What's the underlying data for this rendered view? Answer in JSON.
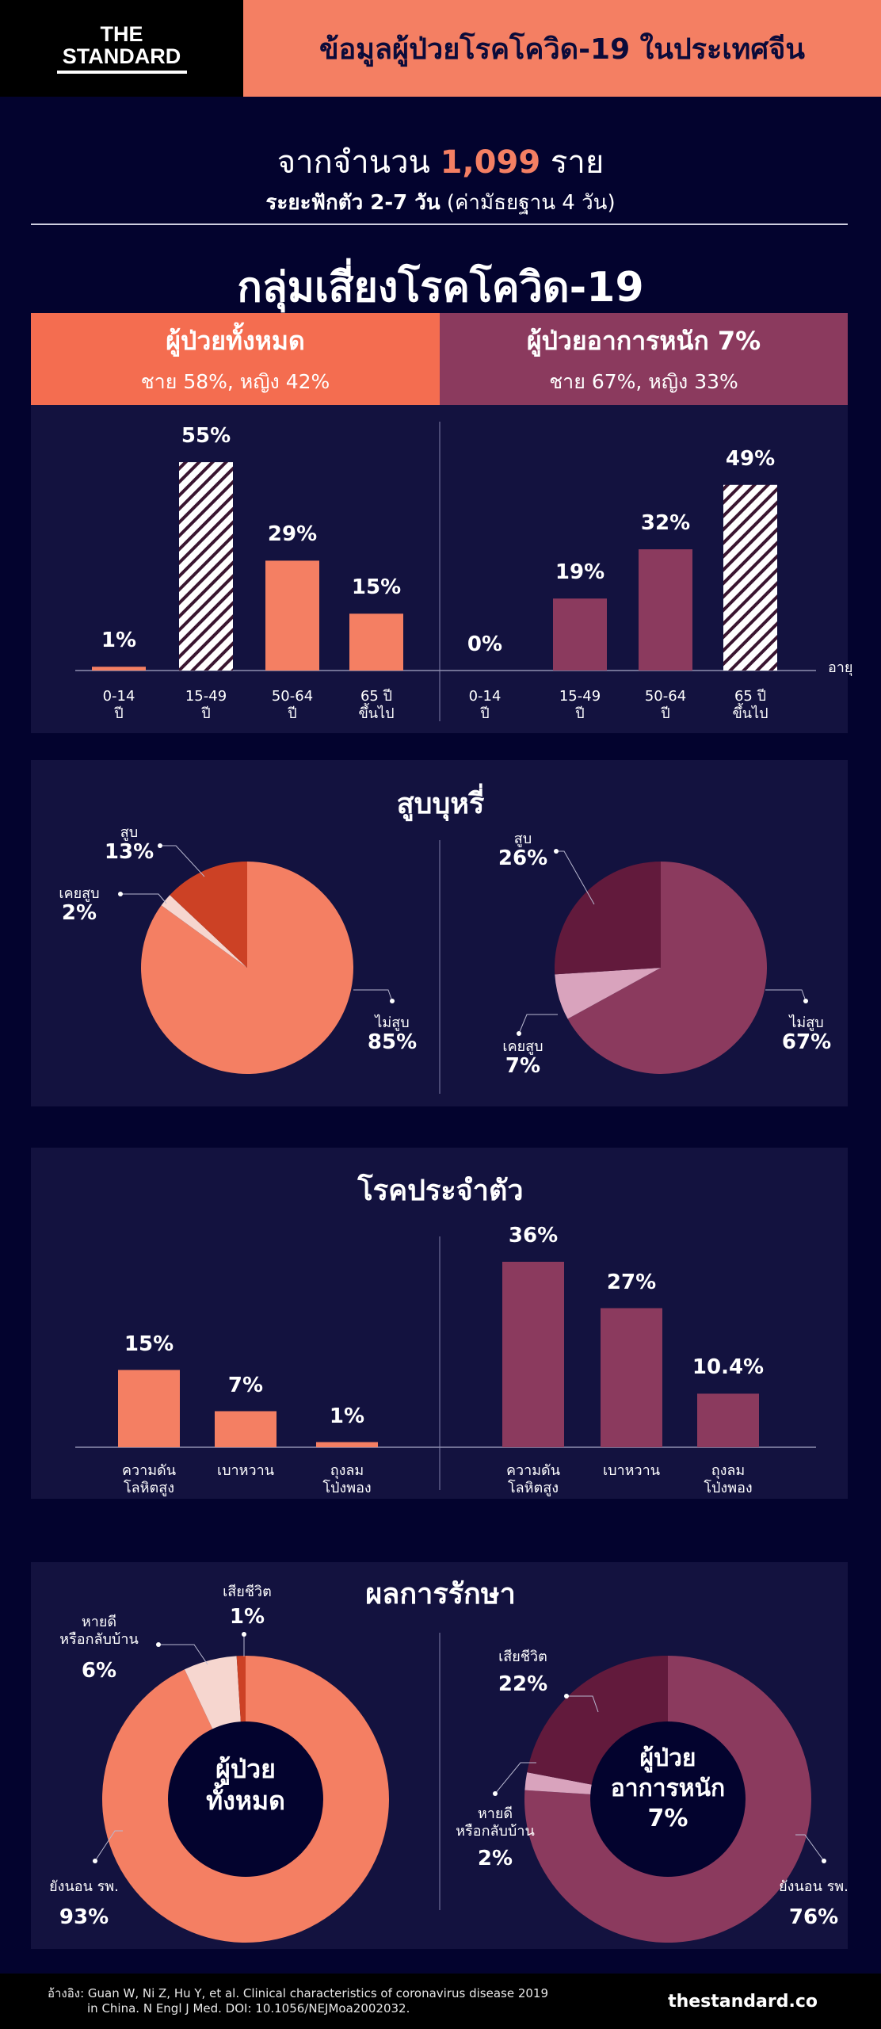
{
  "header": {
    "logo_line1": "THE",
    "logo_line2": "STANDARD",
    "title": "ข้อมูลผู้ป่วยโรคโควิด-19 ในประเทศจีน"
  },
  "intro": {
    "prefix": "จากจำนวน",
    "count": "1,099",
    "suffix": "ราย",
    "incubation_bold": "ระยะฟักตัว 2-7 วัน",
    "incubation_note": "(ค่ามัธยฐาน 4 วัน)"
  },
  "section_title": "กลุ่มเสี่ยงโรคโควิด-19",
  "groups": [
    {
      "title": "ผู้ป่วยทั้งหมด",
      "gender": "ชาย 58%, หญิง 42%"
    },
    {
      "title": "ผู้ป่วยอาการหนัก 7%",
      "gender": "ชาย 67%, หญิง 33%"
    }
  ],
  "colors": {
    "background": "#03032e",
    "panel": "#13123f",
    "orange": "#f47f63",
    "maroon": "#8b3a5e",
    "dark_red": "#cc4125",
    "light_pink": "#f6d6cf",
    "dark_maroon": "#621a3c",
    "mauve": "#d9a3bd"
  },
  "chart_data": [
    {
      "type": "bar",
      "title": "อายุ",
      "xlabel": "อายุ",
      "categories": [
        [
          "0-14",
          "ปี"
        ],
        [
          "15-49",
          "ปี"
        ],
        [
          "50-64",
          "ปี"
        ],
        [
          "65 ปี",
          "ขึ้นไป"
        ]
      ],
      "series": [
        {
          "name": "ผู้ป่วยทั้งหมด",
          "values": [
            1,
            55,
            29,
            15
          ],
          "labels": [
            "1%",
            "55%",
            "29%",
            "15%"
          ],
          "highlight": 1
        },
        {
          "name": "ผู้ป่วยอาการหนัก",
          "values": [
            0,
            19,
            32,
            49
          ],
          "labels": [
            "0%",
            "19%",
            "32%",
            "49%"
          ],
          "highlight": 3
        }
      ]
    },
    {
      "type": "pie",
      "title": "สูบบุหรี่",
      "series": [
        {
          "name": "ผู้ป่วยทั้งหมด",
          "slices": [
            {
              "label": "ไม่สูบ",
              "value": 85,
              "text": "85%"
            },
            {
              "label": "เคยสูบ",
              "value": 2,
              "text": "2%"
            },
            {
              "label": "สูบ",
              "value": 13,
              "text": "13%"
            }
          ]
        },
        {
          "name": "ผู้ป่วยอาการหนัก",
          "slices": [
            {
              "label": "ไม่สูบ",
              "value": 67,
              "text": "67%"
            },
            {
              "label": "เคยสูบ",
              "value": 7,
              "text": "7%"
            },
            {
              "label": "สูบ",
              "value": 26,
              "text": "26%"
            }
          ]
        }
      ]
    },
    {
      "type": "bar",
      "title": "โรคประจำตัว",
      "categories": [
        [
          "ความดัน",
          "โลหิตสูง"
        ],
        [
          "เบาหวาน"
        ],
        [
          "ถุงลม",
          "โป่งพอง"
        ]
      ],
      "series": [
        {
          "name": "ผู้ป่วยทั้งหมด",
          "values": [
            15,
            7,
            1
          ],
          "labels": [
            "15%",
            "7%",
            "1%"
          ]
        },
        {
          "name": "ผู้ป่วยอาการหนัก",
          "values": [
            36,
            27,
            10.4
          ],
          "labels": [
            "36%",
            "27%",
            "10.4%"
          ]
        }
      ]
    },
    {
      "type": "pie",
      "donut": true,
      "title": "ผลการรักษา",
      "series": [
        {
          "name": "ผู้ป่วยทั้งหมด",
          "center": [
            "ผู้ป่วย",
            "ทั้งหมด"
          ],
          "slices": [
            {
              "label": "ยังนอน รพ.",
              "value": 93,
              "text": "93%"
            },
            {
              "label": "หายดี หรือกลับบ้าน",
              "value": 6,
              "text": "6%"
            },
            {
              "label": "เสียชีวิต",
              "value": 1,
              "text": "1%"
            }
          ]
        },
        {
          "name": "ผู้ป่วยอาการหนัก",
          "center": [
            "ผู้ป่วย",
            "อาการหนัก",
            "7%"
          ],
          "slices": [
            {
              "label": "ยังนอน รพ.",
              "value": 76,
              "text": "76%"
            },
            {
              "label": "หายดี หรือกลับบ้าน",
              "value": 2,
              "text": "2%"
            },
            {
              "label": "เสียชีวิต",
              "value": 22,
              "text": "22%"
            }
          ]
        }
      ]
    }
  ],
  "footer": {
    "reference_line1": "อ้างอิง: Guan W, Ni Z, Hu Y, et al. Clinical characteristics of coronavirus disease 2019",
    "reference_line2": "in China. N Engl J Med. DOI: 10.1056/NEJMoa2002032.",
    "site": "thestandard.co"
  }
}
